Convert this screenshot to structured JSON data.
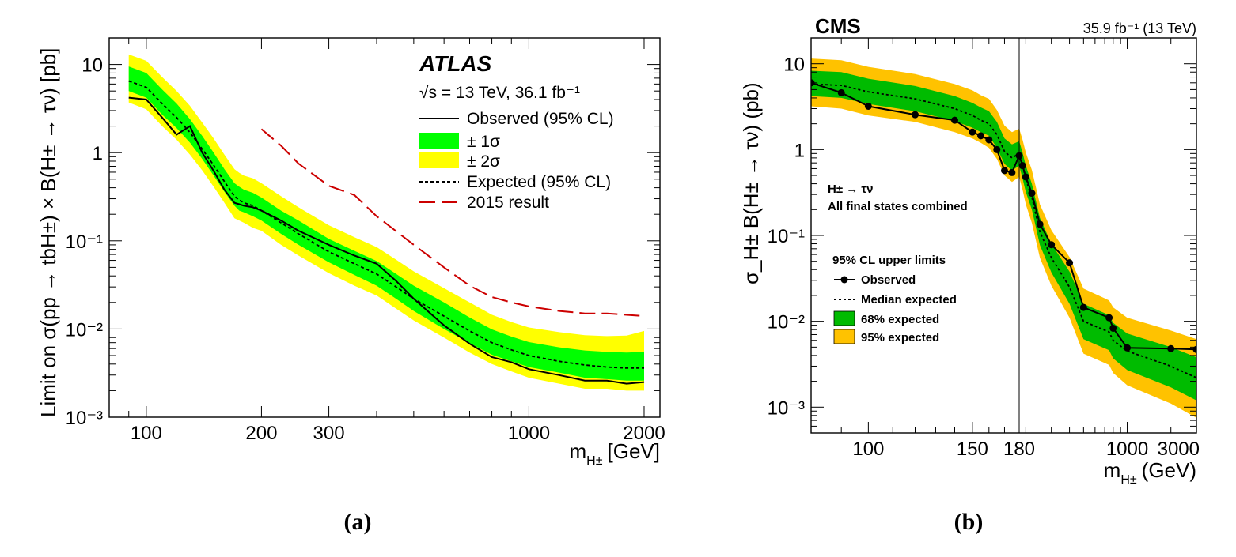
{
  "figure": {
    "caption_a": "(a)",
    "caption_b": "(b)"
  },
  "chart_data": [
    {
      "type": "line",
      "experiment": "ATLAS",
      "energy_label": "√s = 13 TeV, 36.1 fb⁻¹",
      "xlabel": "m_H± [GeV]",
      "xlabel_main": "m",
      "xlabel_sub": "H±",
      "xlabel_unit": "[GeV]",
      "ylabel": "Limit on σ(pp → tbH±) × B(H± → τν) [pb]",
      "xscale": "log",
      "yscale": "log",
      "xlim": [
        80,
        2200
      ],
      "ylim": [
        0.001,
        20
      ],
      "x_ticks": [
        100,
        200,
        300,
        1000,
        2000
      ],
      "x_tick_labels": [
        "100",
        "200",
        "300",
        "1000",
        "2000"
      ],
      "y_ticks": [
        0.001,
        0.01,
        0.1,
        1,
        10
      ],
      "y_tick_labels": [
        "10⁻³",
        "10⁻²",
        "10⁻¹",
        "1",
        "10"
      ],
      "legend": [
        "Observed (95% CL)",
        "± 1σ",
        "± 2σ",
        "Expected (95% CL)",
        "2015 result"
      ],
      "legend_position": "top-right",
      "x": [
        90,
        100,
        110,
        120,
        130,
        140,
        150,
        160,
        170,
        175,
        180,
        190,
        200,
        225,
        250,
        300,
        350,
        400,
        450,
        500,
        600,
        700,
        800,
        900,
        1000,
        1200,
        1400,
        1600,
        1800,
        2000
      ],
      "series": [
        {
          "name": "Observed (95% CL)",
          "values": [
            4.2,
            4.0,
            2.5,
            1.6,
            2.0,
            1.0,
            0.62,
            0.38,
            0.27,
            0.26,
            0.25,
            0.24,
            0.22,
            0.17,
            0.13,
            0.09,
            0.068,
            0.055,
            0.035,
            0.022,
            0.011,
            0.0068,
            0.0048,
            0.0042,
            0.0035,
            0.003,
            0.0026,
            0.0026,
            0.0024,
            0.0025
          ]
        },
        {
          "name": "Expected (95% CL)",
          "values": [
            6.5,
            5.5,
            3.6,
            2.5,
            1.7,
            1.1,
            0.72,
            0.47,
            0.32,
            0.29,
            0.27,
            0.25,
            0.22,
            0.16,
            0.12,
            0.075,
            0.055,
            0.042,
            0.03,
            0.022,
            0.014,
            0.0095,
            0.007,
            0.0058,
            0.005,
            0.0043,
            0.0039,
            0.0037,
            0.0036,
            0.0036
          ]
        },
        {
          "name": "± 1σ",
          "lower": [
            5.0,
            4.2,
            2.7,
            1.9,
            1.3,
            0.85,
            0.55,
            0.36,
            0.25,
            0.22,
            0.21,
            0.19,
            0.17,
            0.12,
            0.09,
            0.057,
            0.041,
            0.031,
            0.022,
            0.016,
            0.01,
            0.0069,
            0.0051,
            0.0043,
            0.0037,
            0.0032,
            0.0028,
            0.0027,
            0.0026,
            0.0026
          ],
          "upper": [
            9.5,
            8.0,
            5.2,
            3.6,
            2.4,
            1.55,
            1.0,
            0.65,
            0.45,
            0.41,
            0.38,
            0.35,
            0.31,
            0.22,
            0.17,
            0.105,
            0.077,
            0.059,
            0.042,
            0.031,
            0.02,
            0.0135,
            0.0099,
            0.0082,
            0.0071,
            0.0062,
            0.0057,
            0.0055,
            0.0054,
            0.0055
          ]
        },
        {
          "name": "± 2σ",
          "lower": [
            3.7,
            3.1,
            2.0,
            1.4,
            0.95,
            0.63,
            0.41,
            0.27,
            0.18,
            0.17,
            0.16,
            0.14,
            0.13,
            0.09,
            0.068,
            0.043,
            0.031,
            0.024,
            0.017,
            0.0125,
            0.008,
            0.0054,
            0.004,
            0.0033,
            0.0028,
            0.0024,
            0.0021,
            0.0021,
            0.002,
            0.002
          ],
          "upper": [
            13,
            11,
            7.2,
            5.0,
            3.4,
            2.2,
            1.45,
            0.95,
            0.65,
            0.59,
            0.55,
            0.51,
            0.45,
            0.32,
            0.24,
            0.15,
            0.11,
            0.085,
            0.061,
            0.045,
            0.029,
            0.02,
            0.0145,
            0.012,
            0.0104,
            0.0092,
            0.0085,
            0.0083,
            0.0084,
            0.0095
          ]
        },
        {
          "name": "2015 result",
          "x": [
            200,
            225,
            250,
            300,
            350,
            400,
            500,
            600,
            700,
            800,
            900,
            1000,
            1200,
            1400,
            1600,
            2000
          ],
          "values": [
            1.85,
            1.2,
            0.75,
            0.42,
            0.33,
            0.19,
            0.09,
            0.05,
            0.031,
            0.023,
            0.02,
            0.018,
            0.016,
            0.015,
            0.015,
            0.014
          ]
        }
      ]
    },
    {
      "type": "line",
      "experiment": "CMS",
      "lumi_label": "35.9 fb⁻¹ (13 TeV)",
      "annotation_1": "H± → τν",
      "annotation_2": "All final states combined",
      "legend_title": "95% CL upper limits",
      "legend": [
        "Observed",
        "Median expected",
        "68% expected",
        "95% expected"
      ],
      "legend_position": "middle-left",
      "xlabel": "m_H± (GeV)",
      "xlabel_main": "m",
      "xlabel_sub": "H±",
      "xlabel_unit": "(GeV)",
      "ylabel": "σ_H± B(H± → τν) (pb)",
      "xscale": "piecewise-log (split at 180)",
      "yscale": "log",
      "xlim": [
        80,
        3000
      ],
      "ylim": [
        0.0005,
        20
      ],
      "x_ticks": [
        100,
        150,
        180,
        1000,
        3000
      ],
      "x_tick_labels": [
        "100",
        "150",
        "180",
        "1000",
        "3000"
      ],
      "y_ticks": [
        0.001,
        0.01,
        0.1,
        1,
        10
      ],
      "y_tick_labels": [
        "10⁻³",
        "10⁻²",
        "10⁻¹",
        "1",
        "10"
      ],
      "vertical_line_at": 180,
      "x": [
        80,
        90,
        100,
        120,
        140,
        150,
        155,
        160,
        165,
        170,
        175,
        180,
        190,
        200,
        220,
        250,
        300,
        400,
        500,
        750,
        800,
        1000,
        2000,
        3000
      ],
      "series": [
        {
          "name": "Observed",
          "values": [
            6.0,
            4.6,
            3.2,
            2.55,
            2.2,
            1.6,
            1.45,
            1.3,
            1.0,
            0.57,
            0.54,
            0.85,
            0.65,
            0.48,
            0.31,
            0.135,
            0.078,
            0.048,
            0.0145,
            0.011,
            0.0083,
            0.0049,
            0.0048,
            0.0047
          ]
        },
        {
          "name": "Median expected",
          "values": [
            5.8,
            5.6,
            4.7,
            3.9,
            3.0,
            2.5,
            2.2,
            2.0,
            1.5,
            0.95,
            0.8,
            0.9,
            0.65,
            0.45,
            0.28,
            0.11,
            0.055,
            0.025,
            0.01,
            0.0075,
            0.006,
            0.0045,
            0.003,
            0.0022
          ]
        },
        {
          "name": "68% expected",
          "lower": [
            4.2,
            4.0,
            3.4,
            2.8,
            2.15,
            1.8,
            1.6,
            1.45,
            1.05,
            0.68,
            0.57,
            0.65,
            0.46,
            0.32,
            0.2,
            0.077,
            0.037,
            0.016,
            0.0062,
            0.0046,
            0.0037,
            0.0027,
            0.0017,
            0.0012
          ],
          "upper": [
            8.3,
            8.0,
            6.7,
            5.5,
            4.2,
            3.5,
            3.1,
            2.8,
            2.1,
            1.35,
            1.15,
            1.25,
            0.92,
            0.65,
            0.4,
            0.16,
            0.08,
            0.038,
            0.016,
            0.0118,
            0.0096,
            0.0072,
            0.005,
            0.0038
          ]
        },
        {
          "name": "95% expected",
          "lower": [
            3.2,
            3.0,
            2.5,
            2.1,
            1.6,
            1.35,
            1.2,
            1.05,
            0.78,
            0.5,
            0.42,
            0.48,
            0.34,
            0.23,
            0.14,
            0.055,
            0.026,
            0.011,
            0.0042,
            0.0031,
            0.0025,
            0.0018,
            0.0011,
            0.00075
          ],
          "upper": [
            11.5,
            11.0,
            9.2,
            7.6,
            5.8,
            4.9,
            4.3,
            3.9,
            2.9,
            1.9,
            1.6,
            1.75,
            1.3,
            0.92,
            0.58,
            0.23,
            0.115,
            0.056,
            0.024,
            0.0175,
            0.0145,
            0.011,
            0.0078,
            0.0062
          ]
        }
      ]
    }
  ]
}
